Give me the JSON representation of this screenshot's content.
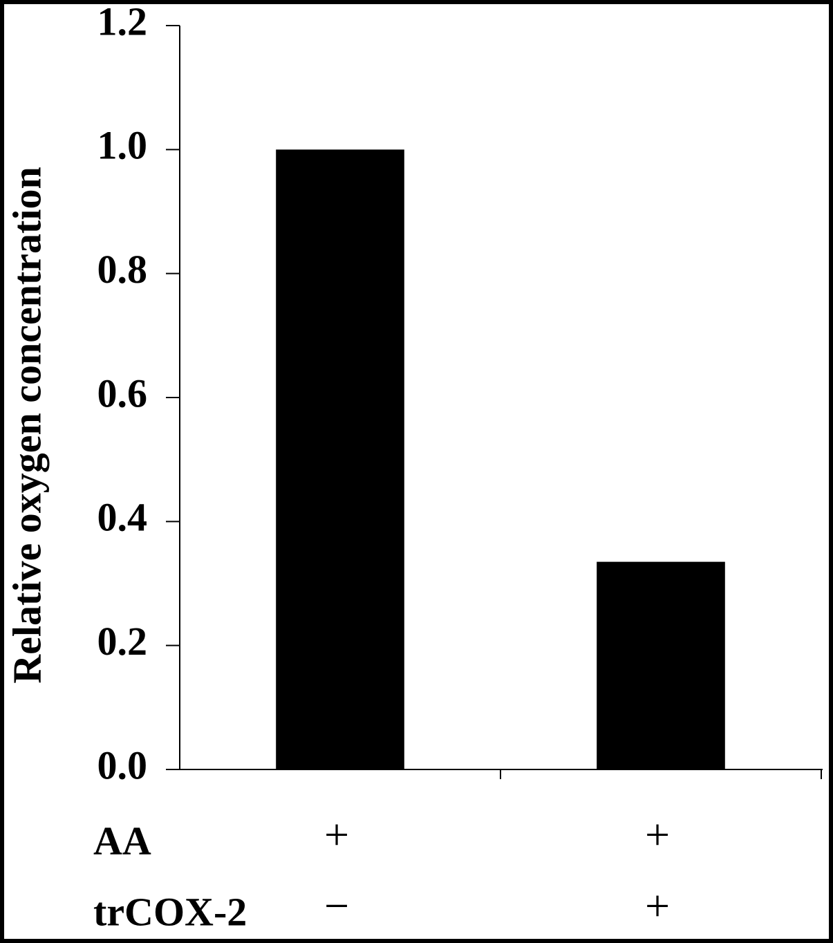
{
  "chart_data": {
    "type": "bar",
    "y_label": "Relative oxygen concentration",
    "categories": [
      null,
      null
    ],
    "values": [
      1.0,
      0.335
    ],
    "color": "#000000",
    "ylim": [
      0,
      1.2
    ],
    "yticks": [
      {
        "value": 0,
        "label": "0.0"
      },
      0.2,
      0.4,
      0.6,
      0.8,
      {
        "value": 1,
        "label": "1.0"
      },
      1.2
    ],
    "conditions": [
      {
        "name": "AA",
        "marks": [
          "+",
          "+"
        ]
      },
      {
        "name": "trCOX-2",
        "marks": [
          "−",
          "+"
        ]
      }
    ]
  }
}
